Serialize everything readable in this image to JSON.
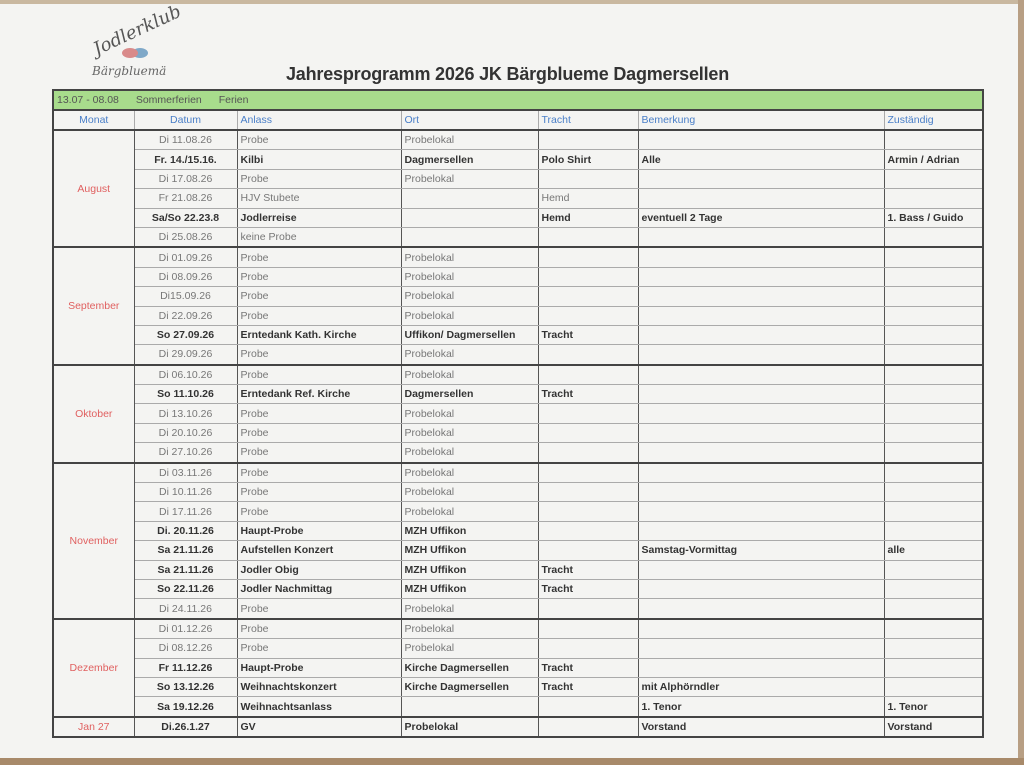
{
  "logo": {
    "text_top": "Jodlerklub",
    "text_bottom": "Bärgbluemä"
  },
  "title": "Jahresprogramm 2026 JK Bärgblueme Dagmersellen",
  "holiday": {
    "dates": "13.07 - 08.08",
    "name": "Sommerferien",
    "type": "Ferien",
    "color": "#a8dc8c"
  },
  "headers": [
    "Monat",
    "Datum",
    "Anlass",
    "Ort",
    "Tracht",
    "Bemerkung",
    "Zuständig"
  ],
  "colors": {
    "month": "#e06060",
    "header": "#4a7fc8"
  },
  "groups": [
    {
      "month": "August",
      "rows": [
        {
          "datum": "Di 11.08.26",
          "anlass": "Probe",
          "ort": "Probelokal",
          "tracht": "",
          "bemerkung": "",
          "zustaendig": "",
          "bold": false
        },
        {
          "datum": "Fr. 14./15.16.",
          "anlass": "Kilbi",
          "ort": "Dagmersellen",
          "tracht": "Polo Shirt",
          "bemerkung": "Alle",
          "zustaendig": "Armin / Adrian",
          "bold": true
        },
        {
          "datum": "Di 17.08.26",
          "anlass": "Probe",
          "ort": "Probelokal",
          "tracht": "",
          "bemerkung": "",
          "zustaendig": "",
          "bold": false
        },
        {
          "datum": "Fr 21.08.26",
          "anlass": "HJV Stubete",
          "ort": "",
          "tracht": "Hemd",
          "bemerkung": "",
          "zustaendig": "",
          "bold": false
        },
        {
          "datum": "Sa/So 22.23.8",
          "anlass": "Jodlerreise",
          "ort": "",
          "tracht": "Hemd",
          "bemerkung": "eventuell 2 Tage",
          "zustaendig": "1. Bass / Guido",
          "bold": true
        },
        {
          "datum": "Di 25.08.26",
          "anlass": "keine Probe",
          "ort": "",
          "tracht": "",
          "bemerkung": "",
          "zustaendig": "",
          "bold": false
        }
      ]
    },
    {
      "month": "September",
      "rows": [
        {
          "datum": "Di 01.09.26",
          "anlass": "Probe",
          "ort": "Probelokal",
          "tracht": "",
          "bemerkung": "",
          "zustaendig": "",
          "bold": false
        },
        {
          "datum": "Di 08.09.26",
          "anlass": "Probe",
          "ort": "Probelokal",
          "tracht": "",
          "bemerkung": "",
          "zustaendig": "",
          "bold": false
        },
        {
          "datum": "Di15.09.26",
          "anlass": "Probe",
          "ort": "Probelokal",
          "tracht": "",
          "bemerkung": "",
          "zustaendig": "",
          "bold": false
        },
        {
          "datum": "Di 22.09.26",
          "anlass": "Probe",
          "ort": "Probelokal",
          "tracht": "",
          "bemerkung": "",
          "zustaendig": "",
          "bold": false
        },
        {
          "datum": "So 27.09.26",
          "anlass": "Erntedank Kath. Kirche",
          "ort": "Uffikon/ Dagmersellen",
          "tracht": "Tracht",
          "bemerkung": "",
          "zustaendig": "",
          "bold": true
        },
        {
          "datum": "Di 29.09.26",
          "anlass": "Probe",
          "ort": "Probelokal",
          "tracht": "",
          "bemerkung": "",
          "zustaendig": "",
          "bold": false
        }
      ]
    },
    {
      "month": "Oktober",
      "rows": [
        {
          "datum": "Di 06.10.26",
          "anlass": "Probe",
          "ort": "Probelokal",
          "tracht": "",
          "bemerkung": "",
          "zustaendig": "",
          "bold": false
        },
        {
          "datum": "So 11.10.26",
          "anlass": "Erntedank Ref. Kirche",
          "ort": "Dagmersellen",
          "tracht": "Tracht",
          "bemerkung": "",
          "zustaendig": "",
          "bold": true
        },
        {
          "datum": "Di 13.10.26",
          "anlass": "Probe",
          "ort": "Probelokal",
          "tracht": "",
          "bemerkung": "",
          "zustaendig": "",
          "bold": false
        },
        {
          "datum": "Di 20.10.26",
          "anlass": "Probe",
          "ort": "Probelokal",
          "tracht": "",
          "bemerkung": "",
          "zustaendig": "",
          "bold": false
        },
        {
          "datum": "Di 27.10.26",
          "anlass": "Probe",
          "ort": "Probelokal",
          "tracht": "",
          "bemerkung": "",
          "zustaendig": "",
          "bold": false
        }
      ]
    },
    {
      "month": "November",
      "rows": [
        {
          "datum": "Di 03.11.26",
          "anlass": "Probe",
          "ort": "Probelokal",
          "tracht": "",
          "bemerkung": "",
          "zustaendig": "",
          "bold": false
        },
        {
          "datum": "Di 10.11.26",
          "anlass": "Probe",
          "ort": "Probelokal",
          "tracht": "",
          "bemerkung": "",
          "zustaendig": "",
          "bold": false
        },
        {
          "datum": "Di 17.11.26",
          "anlass": "Probe",
          "ort": "Probelokal",
          "tracht": "",
          "bemerkung": "",
          "zustaendig": "",
          "bold": false
        },
        {
          "datum": "Di. 20.11.26",
          "anlass": "Haupt-Probe",
          "ort": "MZH Uffikon",
          "tracht": "",
          "bemerkung": "",
          "zustaendig": "",
          "bold": true
        },
        {
          "datum": "Sa 21.11.26",
          "anlass": "Aufstellen Konzert",
          "ort": "MZH Uffikon",
          "tracht": "",
          "bemerkung": "Samstag-Vormittag",
          "zustaendig": "alle",
          "bold": true
        },
        {
          "datum": "Sa 21.11.26",
          "anlass": "Jodler Obig",
          "ort": "MZH Uffikon",
          "tracht": "Tracht",
          "bemerkung": "",
          "zustaendig": "",
          "bold": true
        },
        {
          "datum": "So 22.11.26",
          "anlass": "Jodler Nachmittag",
          "ort": "MZH Uffikon",
          "tracht": "Tracht",
          "bemerkung": "",
          "zustaendig": "",
          "bold": true
        },
        {
          "datum": "Di 24.11.26",
          "anlass": "Probe",
          "ort": "Probelokal",
          "tracht": "",
          "bemerkung": "",
          "zustaendig": "",
          "bold": false
        }
      ]
    },
    {
      "month": "Dezember",
      "rows": [
        {
          "datum": "Di 01.12.26",
          "anlass": "Probe",
          "ort": "Probelokal",
          "tracht": "",
          "bemerkung": "",
          "zustaendig": "",
          "bold": false
        },
        {
          "datum": "Di 08.12.26",
          "anlass": "Probe",
          "ort": "Probelokal",
          "tracht": "",
          "bemerkung": "",
          "zustaendig": "",
          "bold": false
        },
        {
          "datum": "Fr 11.12.26",
          "anlass": "Haupt-Probe",
          "ort": "Kirche Dagmersellen",
          "tracht": "Tracht",
          "bemerkung": "",
          "zustaendig": "",
          "bold": true
        },
        {
          "datum": "So 13.12.26",
          "anlass": "Weihnachtskonzert",
          "ort": "Kirche Dagmersellen",
          "tracht": "Tracht",
          "bemerkung": "mit Alphörndler",
          "zustaendig": "",
          "bold": true
        },
        {
          "datum": "Sa 19.12.26",
          "anlass": "Weihnachtsanlass",
          "ort": "",
          "tracht": "",
          "bemerkung": "1. Tenor",
          "zustaendig": "1. Tenor",
          "bold": true
        }
      ]
    },
    {
      "month": "Jan 27",
      "rows": [
        {
          "datum": "Di.26.1.27",
          "anlass": "GV",
          "ort": "Probelokal",
          "tracht": "",
          "bemerkung": "Vorstand",
          "zustaendig": "Vorstand",
          "bold": true
        }
      ]
    }
  ]
}
